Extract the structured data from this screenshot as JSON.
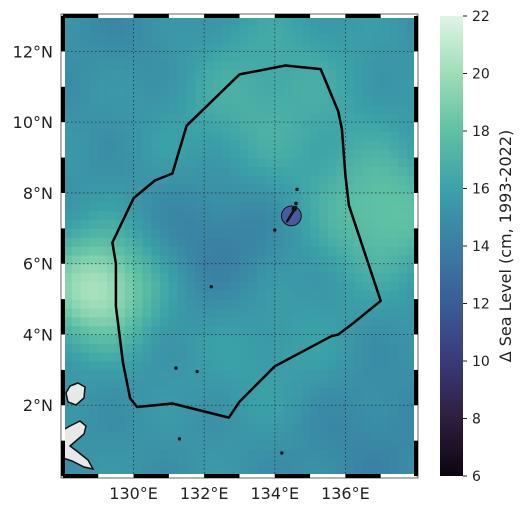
{
  "map": {
    "lon_range": [
      128,
      138
    ],
    "lat_range": [
      0,
      13
    ],
    "lon_ticks": [
      {
        "value": 130,
        "label": "130°E"
      },
      {
        "value": 132,
        "label": "132°E"
      },
      {
        "value": 134,
        "label": "134°E"
      },
      {
        "value": 136,
        "label": "136°E"
      }
    ],
    "lat_ticks": [
      {
        "value": 2,
        "label": "2°N"
      },
      {
        "value": 4,
        "label": "4°N"
      },
      {
        "value": 6,
        "label": "6°N"
      },
      {
        "value": 8,
        "label": "8°N"
      },
      {
        "value": 10,
        "label": "10°N"
      },
      {
        "value": 12,
        "label": "12°N"
      }
    ],
    "gridlines": true,
    "frame_style": "alternating black/white"
  },
  "colorbar": {
    "label": "Δ Sea Level (cm, 1993-2022)",
    "min": 6,
    "max": 22,
    "ticks": [
      "6",
      "8",
      "10",
      "12",
      "14",
      "16",
      "18",
      "20",
      "22"
    ],
    "colormap": [
      "#0b0510",
      "#2e1e3c",
      "#3a3a7a",
      "#3a5c95",
      "#3a7ea4",
      "#3ba1a8",
      "#5fc1a4",
      "#9fddb8",
      "#dff5e6"
    ]
  },
  "field": {
    "base_value": 15.2,
    "features": [
      {
        "lon": 129.0,
        "lat": 5.3,
        "amp": 5.3,
        "spread": 1.1
      },
      {
        "lon": 137.1,
        "lat": 7.4,
        "amp": 3.0,
        "spread": 1.3
      },
      {
        "lon": 133.6,
        "lat": 10.6,
        "amp": 1.8,
        "spread": 2.0
      },
      {
        "lon": 132.5,
        "lat": 6.8,
        "amp": -1.4,
        "spread": 1.4
      },
      {
        "lon": 134.0,
        "lat": 3.5,
        "amp": 0.9,
        "spread": 1.6
      },
      {
        "lon": 130.5,
        "lat": 12.6,
        "amp": -0.6,
        "spread": 1.5
      },
      {
        "lon": 136.5,
        "lat": 1.0,
        "amp": -0.8,
        "spread": 1.6
      }
    ]
  },
  "eez_boundary": [
    [
      130.0,
      7.85
    ],
    [
      130.6,
      8.35
    ],
    [
      131.1,
      8.55
    ],
    [
      131.5,
      9.9
    ],
    [
      133.0,
      11.35
    ],
    [
      134.3,
      11.6
    ],
    [
      135.3,
      11.5
    ],
    [
      135.8,
      10.3
    ],
    [
      135.9,
      9.8
    ],
    [
      136.0,
      8.5
    ],
    [
      136.1,
      7.65
    ],
    [
      137.0,
      4.95
    ],
    [
      136.2,
      4.3
    ],
    [
      135.8,
      4.0
    ],
    [
      135.6,
      3.95
    ],
    [
      134.0,
      3.1
    ],
    [
      133.0,
      2.1
    ],
    [
      132.7,
      1.65
    ],
    [
      131.1,
      2.05
    ],
    [
      130.1,
      1.95
    ],
    [
      129.9,
      2.2
    ],
    [
      129.7,
      3.2
    ],
    [
      129.5,
      4.8
    ],
    [
      129.5,
      6.0
    ],
    [
      129.4,
      6.6
    ]
  ],
  "islands": [
    {
      "lon": 134.47,
      "lat": 7.35,
      "r": 0.28,
      "fill": "#4a5aa0"
    },
    {
      "lon": 134.55,
      "lat": 7.55,
      "r": 0.06,
      "fill": "#111111"
    },
    {
      "lon": 134.6,
      "lat": 7.7,
      "r": 0.04,
      "fill": "#111111"
    },
    {
      "lon": 134.63,
      "lat": 8.1,
      "r": 0.03,
      "fill": "#111111"
    },
    {
      "lon": 134.0,
      "lat": 6.95,
      "r": 0.03,
      "fill": "#111111"
    },
    {
      "lon": 131.2,
      "lat": 3.05,
      "r": 0.03,
      "fill": "#111111"
    },
    {
      "lon": 131.8,
      "lat": 2.95,
      "r": 0.03,
      "fill": "#111111"
    },
    {
      "lon": 132.2,
      "lat": 5.35,
      "r": 0.02,
      "fill": "#111111"
    },
    {
      "lon": 131.3,
      "lat": 1.05,
      "r": 0.03,
      "fill": "#111111"
    },
    {
      "lon": 134.2,
      "lat": 0.65,
      "r": 0.03,
      "fill": "#111111"
    }
  ]
}
